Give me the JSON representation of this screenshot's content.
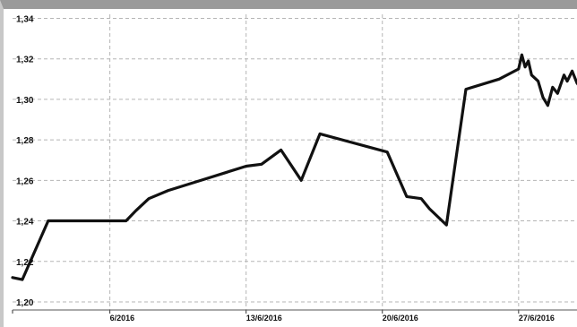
{
  "chart_data": {
    "type": "line",
    "title": "",
    "xlabel": "",
    "ylabel": "",
    "grid": true,
    "ylim": [
      1.196,
      1.342
    ],
    "y_ticks": [
      1.2,
      1.22,
      1.24,
      1.26,
      1.28,
      1.3,
      1.32,
      1.34
    ],
    "y_tick_labels": [
      "1,20",
      "1,22",
      "1,24",
      "1,26",
      "1,28",
      "1,30",
      "1,32",
      "1,34"
    ],
    "x_tick_labels": [
      "6/2016",
      "13/6/2016",
      "20/6/2016",
      "27/6/2016"
    ],
    "x_tick_dates": [
      "2016-06-06",
      "2016-06-13",
      "2016-06-20",
      "2016-06-27"
    ],
    "x_range": [
      "2016-06-01",
      "2016-06-30"
    ],
    "series": [
      {
        "color": "#111111",
        "points": [
          [
            "2016-06-01 00:00",
            1.212
          ],
          [
            "2016-06-01 12:00",
            1.211
          ],
          [
            "2016-06-02 20:00",
            1.24
          ],
          [
            "2016-06-06 20:00",
            1.24
          ],
          [
            "2016-06-07 08:00",
            1.245
          ],
          [
            "2016-06-08 00:00",
            1.251
          ],
          [
            "2016-06-09 00:00",
            1.255
          ],
          [
            "2016-06-10 00:00",
            1.258
          ],
          [
            "2016-06-11 00:00",
            1.261
          ],
          [
            "2016-06-12 00:00",
            1.264
          ],
          [
            "2016-06-13 00:00",
            1.267
          ],
          [
            "2016-06-13 19:00",
            1.268
          ],
          [
            "2016-06-14 19:00",
            1.275
          ],
          [
            "2016-06-15 20:00",
            1.26
          ],
          [
            "2016-06-16 19:00",
            1.283
          ],
          [
            "2016-06-20 06:00",
            1.274
          ],
          [
            "2016-06-21 06:00",
            1.252
          ],
          [
            "2016-06-22 00:00",
            1.251
          ],
          [
            "2016-06-22 10:00",
            1.246
          ],
          [
            "2016-06-23 07:00",
            1.238
          ],
          [
            "2016-06-24 07:00",
            1.305
          ],
          [
            "2016-06-26 00:00",
            1.31
          ],
          [
            "2016-06-27 00:00",
            1.315
          ],
          [
            "2016-06-27 04:00",
            1.322
          ],
          [
            "2016-06-27 08:00",
            1.316
          ],
          [
            "2016-06-27 12:00",
            1.319
          ],
          [
            "2016-06-27 16:00",
            1.312
          ],
          [
            "2016-06-28 00:00",
            1.309
          ],
          [
            "2016-06-28 06:00",
            1.301
          ],
          [
            "2016-06-28 12:00",
            1.297
          ],
          [
            "2016-06-28 18:00",
            1.306
          ],
          [
            "2016-06-29 00:00",
            1.303
          ],
          [
            "2016-06-29 08:00",
            1.312
          ],
          [
            "2016-06-29 12:00",
            1.309
          ],
          [
            "2016-06-29 18:00",
            1.314
          ],
          [
            "2016-06-30 00:00",
            1.308
          ],
          [
            "2016-06-30 06:00",
            1.305
          ],
          [
            "2016-06-30 12:00",
            1.309
          ]
        ]
      }
    ]
  }
}
